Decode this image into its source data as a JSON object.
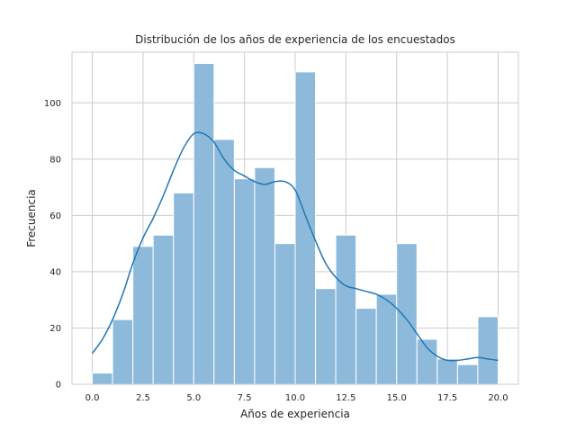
{
  "chart_data": {
    "type": "bar",
    "title": "Distribución de los años de experiencia de los encuestados",
    "xlabel": "Años de experiencia",
    "ylabel": "Frecuencia",
    "xlim": [
      -1.0,
      21.0
    ],
    "ylim": [
      0,
      118
    ],
    "grid": true,
    "bin_width": 1.0,
    "bins": [
      {
        "x0": 0.0,
        "x1": 1.0,
        "count": 4
      },
      {
        "x0": 1.0,
        "x1": 2.0,
        "count": 23
      },
      {
        "x0": 2.0,
        "x1": 3.0,
        "count": 49
      },
      {
        "x0": 3.0,
        "x1": 4.0,
        "count": 53
      },
      {
        "x0": 4.0,
        "x1": 5.0,
        "count": 68
      },
      {
        "x0": 5.0,
        "x1": 6.0,
        "count": 114
      },
      {
        "x0": 6.0,
        "x1": 7.0,
        "count": 87
      },
      {
        "x0": 7.0,
        "x1": 8.0,
        "count": 73
      },
      {
        "x0": 8.0,
        "x1": 9.0,
        "count": 77
      },
      {
        "x0": 9.0,
        "x1": 10.0,
        "count": 50
      },
      {
        "x0": 10.0,
        "x1": 11.0,
        "count": 111
      },
      {
        "x0": 11.0,
        "x1": 12.0,
        "count": 34
      },
      {
        "x0": 12.0,
        "x1": 13.0,
        "count": 53
      },
      {
        "x0": 13.0,
        "x1": 14.0,
        "count": 27
      },
      {
        "x0": 14.0,
        "x1": 15.0,
        "count": 32
      },
      {
        "x0": 15.0,
        "x1": 16.0,
        "count": 50
      },
      {
        "x0": 16.0,
        "x1": 17.0,
        "count": 16
      },
      {
        "x0": 17.0,
        "x1": 18.0,
        "count": 9
      },
      {
        "x0": 18.0,
        "x1": 19.0,
        "count": 7
      },
      {
        "x0": 19.0,
        "x1": 20.0,
        "count": 24
      }
    ],
    "kde": {
      "x": [
        0.0,
        0.5,
        1.0,
        1.5,
        2.0,
        2.5,
        3.0,
        3.5,
        4.0,
        4.5,
        5.0,
        5.5,
        6.0,
        6.5,
        7.0,
        7.5,
        8.0,
        8.5,
        9.0,
        9.5,
        10.0,
        10.5,
        11.0,
        11.5,
        12.0,
        12.5,
        13.0,
        13.5,
        14.0,
        14.5,
        15.0,
        15.5,
        16.0,
        16.5,
        17.0,
        17.5,
        18.0,
        18.5,
        19.0,
        19.5,
        20.0
      ],
      "y": [
        11,
        16,
        23,
        32,
        43,
        52,
        59,
        67,
        76,
        84,
        89,
        89,
        86,
        80,
        76,
        74,
        72,
        71,
        72,
        72,
        69,
        60,
        51,
        43,
        38,
        35,
        34,
        33,
        32,
        30,
        27,
        23,
        18,
        13,
        10,
        8.5,
        8.5,
        9,
        9.5,
        9,
        8.5
      ]
    },
    "x_ticks": [
      "0.0",
      "2.5",
      "5.0",
      "7.5",
      "10.0",
      "12.5",
      "15.0",
      "17.5",
      "20.0"
    ],
    "x_tick_values": [
      0.0,
      2.5,
      5.0,
      7.5,
      10.0,
      12.5,
      15.0,
      17.5,
      20.0
    ],
    "y_ticks": [
      "0",
      "20",
      "40",
      "60",
      "80",
      "100"
    ],
    "y_tick_values": [
      0,
      20,
      40,
      60,
      80,
      100
    ],
    "colors": {
      "bar_fill": "#8dbadb",
      "bar_stroke": "#ffffff",
      "kde_line": "#1f77b4",
      "grid": "#cccccc",
      "frame": "#cccccc"
    }
  }
}
